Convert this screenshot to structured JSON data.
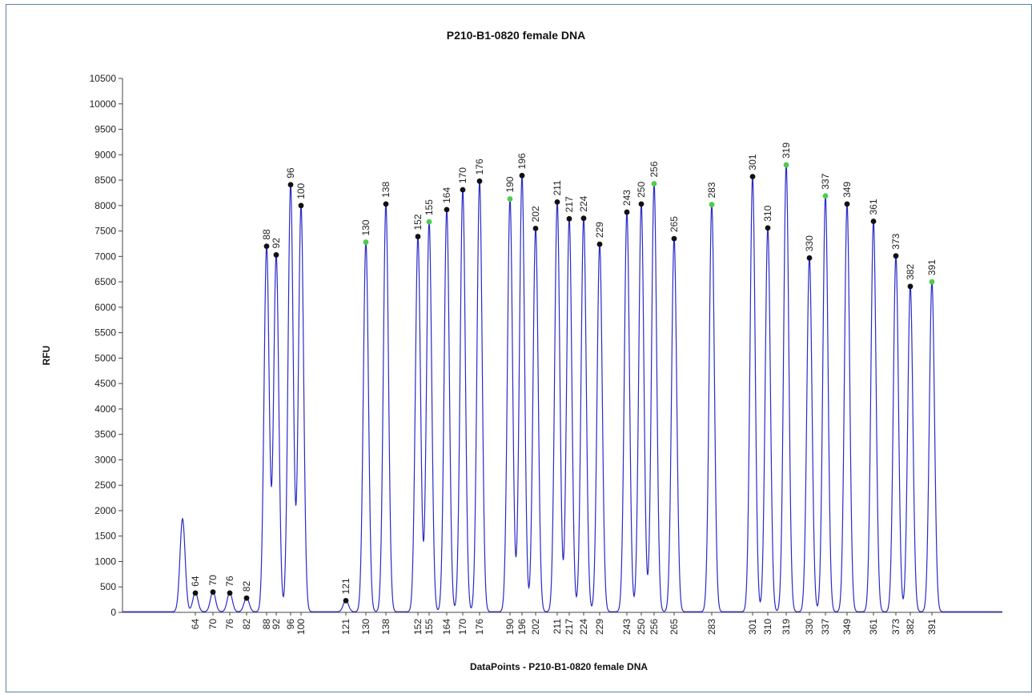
{
  "chart_data": {
    "type": "line",
    "title": "P210-B1-0820 female DNA",
    "xlabel": "DataPoints - P210-B1-0820 female DNA",
    "ylabel": "RFU",
    "ylim": [
      0,
      10500
    ],
    "ytick_step": 500,
    "grid": false,
    "series_color": "#2a2ac8",
    "marker_colors": {
      "called": "#111111",
      "highlight": "#4dcc4d"
    },
    "x_tick_labels": [
      "64",
      "70",
      "76",
      "82",
      "88",
      "92",
      "96",
      "100",
      "121",
      "130",
      "138",
      "152",
      "155",
      "164",
      "170",
      "176",
      "190",
      "196",
      "202",
      "211",
      "217",
      "224",
      "229",
      "243",
      "250",
      "256",
      "265",
      "283",
      "301",
      "310",
      "319",
      "330",
      "337",
      "349",
      "361",
      "373",
      "382",
      "391"
    ],
    "unlabeled_peaks": [
      {
        "size": 47,
        "rfu": 1830
      }
    ],
    "peaks": [
      {
        "size": "64",
        "rfu": 380,
        "marker": "called"
      },
      {
        "size": "70",
        "rfu": 400,
        "marker": "called"
      },
      {
        "size": "76",
        "rfu": 380,
        "marker": "called"
      },
      {
        "size": "82",
        "rfu": 280,
        "marker": "called"
      },
      {
        "size": "88",
        "rfu": 7200,
        "marker": "called"
      },
      {
        "size": "92",
        "rfu": 7030,
        "marker": "called"
      },
      {
        "size": "96",
        "rfu": 8410,
        "marker": "called"
      },
      {
        "size": "100",
        "rfu": 8000,
        "marker": "called"
      },
      {
        "size": "121",
        "rfu": 230,
        "marker": "called"
      },
      {
        "size": "130",
        "rfu": 7280,
        "marker": "highlight"
      },
      {
        "size": "138",
        "rfu": 8030,
        "marker": "called"
      },
      {
        "size": "152",
        "rfu": 7390,
        "marker": "called"
      },
      {
        "size": "155",
        "rfu": 7680,
        "marker": "highlight"
      },
      {
        "size": "164",
        "rfu": 7920,
        "marker": "called"
      },
      {
        "size": "170",
        "rfu": 8310,
        "marker": "called"
      },
      {
        "size": "176",
        "rfu": 8480,
        "marker": "called"
      },
      {
        "size": "190",
        "rfu": 8130,
        "marker": "highlight"
      },
      {
        "size": "196",
        "rfu": 8590,
        "marker": "called"
      },
      {
        "size": "202",
        "rfu": 7550,
        "marker": "called"
      },
      {
        "size": "211",
        "rfu": 8070,
        "marker": "called"
      },
      {
        "size": "217",
        "rfu": 7740,
        "marker": "called"
      },
      {
        "size": "224",
        "rfu": 7750,
        "marker": "called"
      },
      {
        "size": "229",
        "rfu": 7240,
        "marker": "called"
      },
      {
        "size": "243",
        "rfu": 7870,
        "marker": "called"
      },
      {
        "size": "250",
        "rfu": 8030,
        "marker": "called"
      },
      {
        "size": "256",
        "rfu": 8430,
        "marker": "highlight"
      },
      {
        "size": "265",
        "rfu": 7350,
        "marker": "called"
      },
      {
        "size": "283",
        "rfu": 8020,
        "marker": "highlight"
      },
      {
        "size": "301",
        "rfu": 8570,
        "marker": "called"
      },
      {
        "size": "310",
        "rfu": 7560,
        "marker": "called"
      },
      {
        "size": "319",
        "rfu": 8800,
        "marker": "highlight"
      },
      {
        "size": "330",
        "rfu": 6970,
        "marker": "called"
      },
      {
        "size": "337",
        "rfu": 8190,
        "marker": "highlight"
      },
      {
        "size": "349",
        "rfu": 8030,
        "marker": "called"
      },
      {
        "size": "361",
        "rfu": 7690,
        "marker": "called"
      },
      {
        "size": "373",
        "rfu": 7010,
        "marker": "called"
      },
      {
        "size": "382",
        "rfu": 6410,
        "marker": "called"
      },
      {
        "size": "391",
        "rfu": 6500,
        "marker": "highlight"
      }
    ]
  }
}
